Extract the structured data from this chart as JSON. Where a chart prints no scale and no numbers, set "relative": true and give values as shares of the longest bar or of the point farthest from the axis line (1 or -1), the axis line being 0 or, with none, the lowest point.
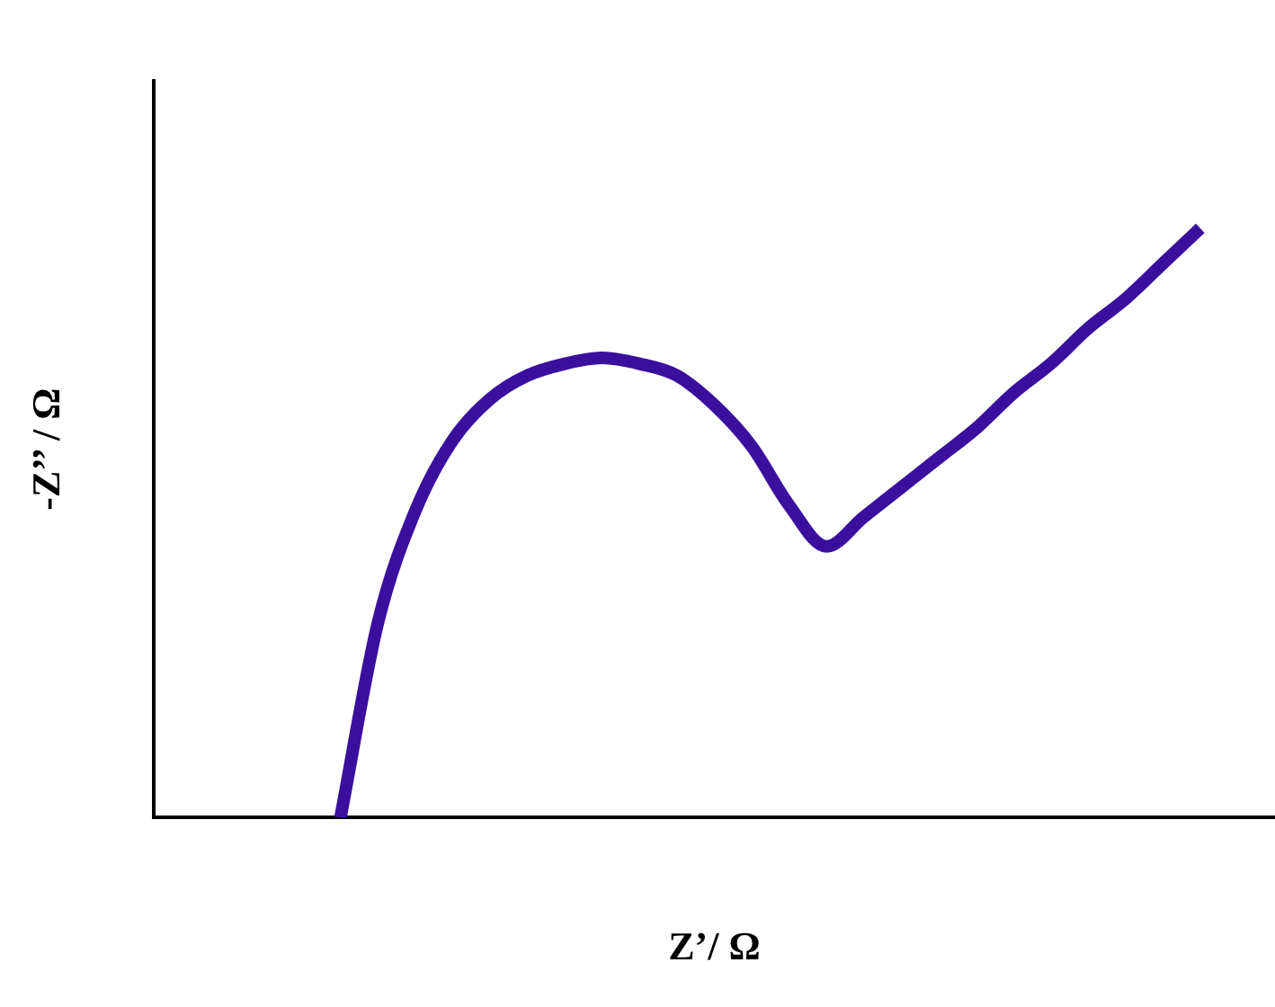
{
  "chart_data": {
    "type": "line",
    "relative": true,
    "xlabel": "Z’/ Ω",
    "ylabel": "-Z’’ / Ω",
    "tick_labels": false,
    "grid": false,
    "legend": false,
    "categories": [
      null,
      null,
      null,
      null,
      null,
      null,
      null,
      null,
      null,
      null,
      null,
      null,
      null,
      null,
      null,
      null,
      null,
      null,
      null,
      null,
      null,
      null,
      null,
      null,
      null,
      null,
      null,
      null,
      null,
      null,
      null
    ],
    "series": [
      {
        "color": "#3a0f9e",
        "values": [
          null,
          null,
          null,
          null,
          null,
          0,
          0.33,
          0.52,
          0.64,
          0.71,
          0.75,
          0.77,
          0.78,
          0.77,
          0.75,
          0.7,
          0.63,
          0.53,
          0.46,
          0.51,
          0.56,
          0.61,
          0.66,
          0.72,
          0.77,
          0.83,
          0.88,
          0.94,
          1,
          null,
          null
        ]
      }
    ]
  }
}
